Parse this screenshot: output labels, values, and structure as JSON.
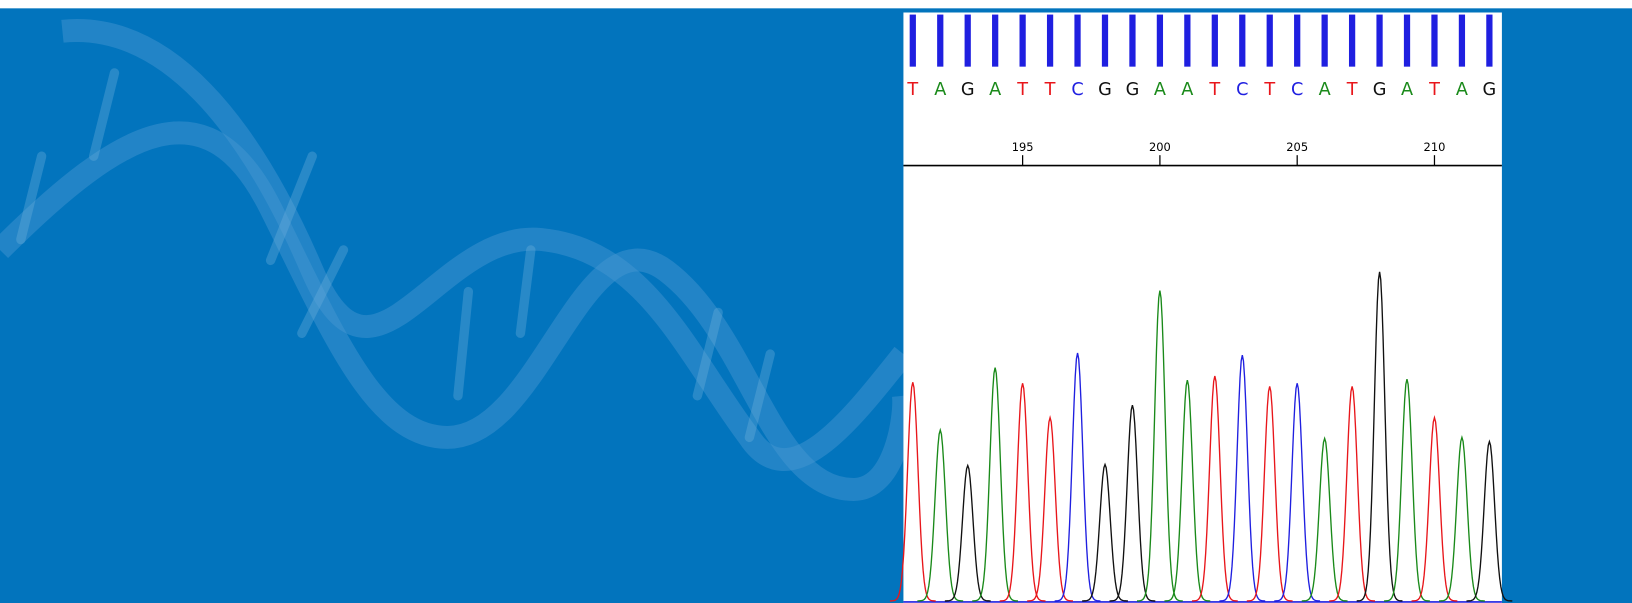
{
  "sequence": {
    "bases": [
      "T",
      "A",
      "G",
      "A",
      "T",
      "T",
      "C",
      "G",
      "G",
      "A",
      "A",
      "T",
      "C",
      "T",
      "C",
      "A",
      "T",
      "G",
      "A",
      "T",
      "A",
      "G"
    ],
    "peak_heights": [
      210,
      164,
      130,
      224,
      209,
      176,
      238,
      131,
      188,
      298,
      212,
      216,
      236,
      206,
      209,
      156,
      206,
      316,
      213,
      176,
      157,
      153
    ],
    "base_colors": {
      "A": "#1a8a1a",
      "T": "#e8161b",
      "G": "#111111",
      "C": "#1f1fe0"
    }
  },
  "ruler": {
    "labels": [
      195,
      200,
      205,
      210
    ]
  }
}
